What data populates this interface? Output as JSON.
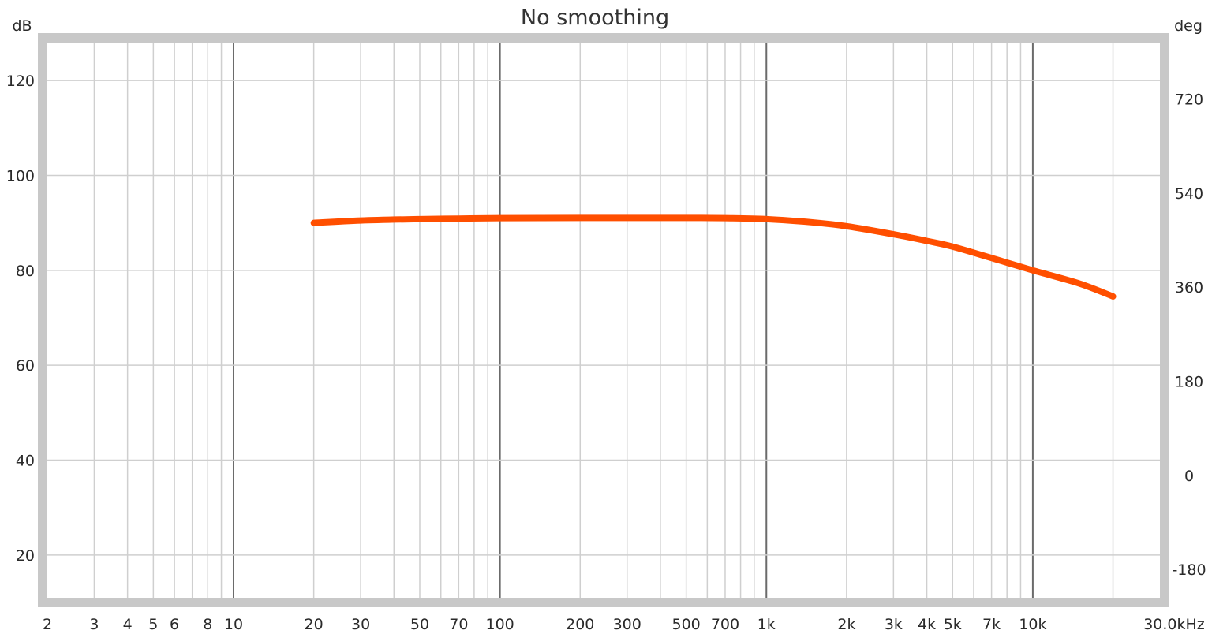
{
  "chart_data": {
    "type": "line",
    "title": "No smoothing",
    "y_left_unit": "dB",
    "y_right_unit": "deg",
    "x_scale": "log",
    "xlim": [
      2,
      30000
    ],
    "ylim": [
      11,
      128
    ],
    "y_right_lim": [
      -234,
      828
    ],
    "x_ticks": [
      {
        "value": 2,
        "label": "2"
      },
      {
        "value": 3,
        "label": "3"
      },
      {
        "value": 4,
        "label": "4"
      },
      {
        "value": 5,
        "label": "5"
      },
      {
        "value": 6,
        "label": "6"
      },
      {
        "value": 8,
        "label": "8"
      },
      {
        "value": 10,
        "label": "10"
      },
      {
        "value": 20,
        "label": "20"
      },
      {
        "value": 30,
        "label": "30"
      },
      {
        "value": 50,
        "label": "50"
      },
      {
        "value": 70,
        "label": "70"
      },
      {
        "value": 100,
        "label": "100"
      },
      {
        "value": 200,
        "label": "200"
      },
      {
        "value": 300,
        "label": "300"
      },
      {
        "value": 500,
        "label": "500"
      },
      {
        "value": 700,
        "label": "700"
      },
      {
        "value": 1000,
        "label": "1k"
      },
      {
        "value": 2000,
        "label": "2k"
      },
      {
        "value": 3000,
        "label": "3k"
      },
      {
        "value": 4000,
        "label": "4k"
      },
      {
        "value": 5000,
        "label": "5k"
      },
      {
        "value": 7000,
        "label": "7k"
      },
      {
        "value": 10000,
        "label": "10k"
      },
      {
        "value": 30000,
        "label": "30.0kHz"
      }
    ],
    "y_ticks": [
      20,
      40,
      60,
      80,
      100,
      120
    ],
    "y_right_ticks": [
      -180,
      0,
      180,
      360,
      540,
      720
    ],
    "grid": true,
    "series": [
      {
        "color": "#ff4f00",
        "x": [
          20,
          30,
          50,
          70,
          100,
          200,
          300,
          500,
          700,
          1000,
          1500,
          2000,
          3000,
          4000,
          5000,
          7000,
          10000,
          15000,
          20000
        ],
        "y": [
          90.0,
          90.5,
          90.8,
          90.9,
          91.0,
          91.05,
          91.05,
          91.05,
          91.0,
          90.8,
          90.1,
          89.3,
          87.6,
          86.2,
          85.0,
          82.6,
          80.0,
          77.2,
          74.5
        ]
      }
    ]
  }
}
